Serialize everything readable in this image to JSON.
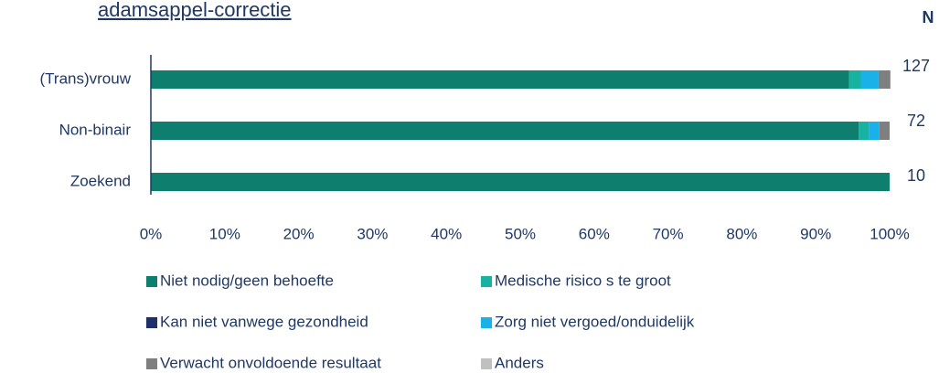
{
  "chart_data": {
    "type": "stacked_barh",
    "title": "adamsappel-correctie",
    "n_header": "N",
    "categories": [
      "(Trans)vrouw",
      "Non-binair",
      "Zoekend"
    ],
    "n_values": [
      127,
      72,
      10
    ],
    "series": [
      {
        "name": "Niet nodig/geen behoefte",
        "color": "#0e7f6e",
        "values": [
          94.5,
          95.8,
          100
        ]
      },
      {
        "name": "Medische risico s te groot",
        "color": "#17b3a0",
        "values": [
          1.6,
          1.4,
          0
        ]
      },
      {
        "name": "Kan niet vanwege gezondheid",
        "color": "#1f2f6b",
        "values": [
          0,
          0,
          0
        ]
      },
      {
        "name": "Zorg niet vergoed/onduidelijk",
        "color": "#1ab0e8",
        "values": [
          2.4,
          1.4,
          0
        ]
      },
      {
        "name": "Verwacht onvoldoende resultaat",
        "color": "#7f7f7f",
        "values": [
          1.6,
          1.4,
          0
        ]
      },
      {
        "name": "Anders",
        "color": "#c0c0c0",
        "values": [
          0,
          0,
          0
        ]
      }
    ],
    "xlim": [
      0,
      100
    ],
    "xticks": [
      {
        "value": 0,
        "label": "0%"
      },
      {
        "value": 10,
        "label": "10%"
      },
      {
        "value": 20,
        "label": "20%"
      },
      {
        "value": 30,
        "label": "30%"
      },
      {
        "value": 40,
        "label": "40%"
      },
      {
        "value": 50,
        "label": "50%"
      },
      {
        "value": 60,
        "label": "60%"
      },
      {
        "value": 70,
        "label": "70%"
      },
      {
        "value": 80,
        "label": "80%"
      },
      {
        "value": 90,
        "label": "90%"
      },
      {
        "value": 100,
        "label": "100%"
      }
    ]
  }
}
